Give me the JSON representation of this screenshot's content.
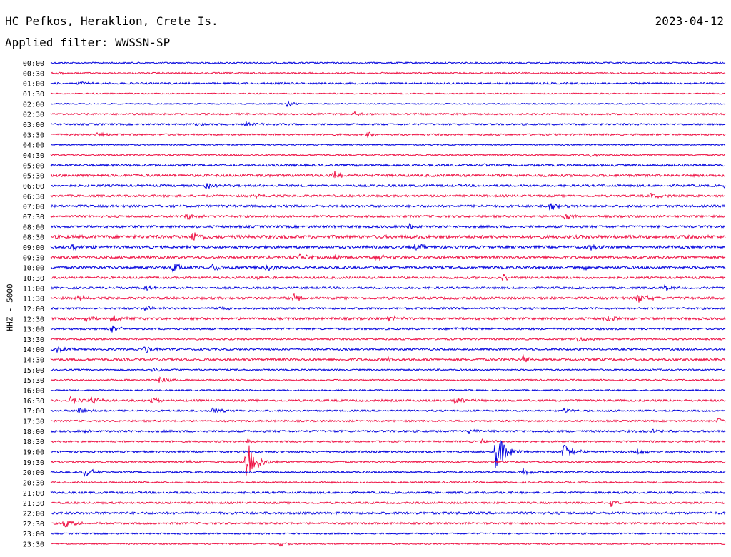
{
  "header": {
    "station": "HC Pefkos, Heraklion, Crete Is.",
    "date": "2023-04-12",
    "filter_label": "Applied filter:",
    "filter_name": "WWSSN-SP"
  },
  "channel_label": "HHZ - 5000",
  "colors": {
    "odd_trace": "#0000dd",
    "even_trace": "#ee1144"
  },
  "chart_data": {
    "type": "line",
    "title": "HC Pefkos, Heraklion, Crete Is.",
    "ylabel": "HHZ - 5000",
    "categories": [
      "00:00",
      "00:30",
      "01:00",
      "01:30",
      "02:00",
      "02:30",
      "03:00",
      "03:30",
      "04:00",
      "04:30",
      "05:00",
      "05:30",
      "06:00",
      "06:30",
      "07:00",
      "07:30",
      "08:00",
      "08:30",
      "09:00",
      "09:30",
      "10:00",
      "10:30",
      "11:00",
      "11:30",
      "12:00",
      "12:30",
      "13:00",
      "13:30",
      "14:00",
      "14:30",
      "15:00",
      "15:30",
      "16:00",
      "16:30",
      "17:00",
      "17:30",
      "18:00",
      "18:30",
      "19:00",
      "19:30",
      "20:00",
      "20:30",
      "21:00",
      "21:30",
      "22:00",
      "22:30",
      "23:00",
      "23:30"
    ],
    "noise": [
      1,
      1,
      1.2,
      0.8,
      0.8,
      1.2,
      1.2,
      1.2,
      0.8,
      1,
      1.5,
      1.8,
      1.5,
      1.5,
      1.6,
      1.5,
      1.6,
      2.2,
      1.8,
      1.8,
      1.8,
      1.5,
      1.4,
      1.6,
      1.3,
      1.6,
      1.3,
      1.2,
      1.3,
      1.6,
      1,
      1,
      1,
      1.4,
      1.2,
      1.2,
      1.4,
      1.2,
      1.3,
      1.1,
      1.2,
      1.1,
      1.4,
      1.3,
      1.6,
      1.3,
      1,
      0.9
    ],
    "events": [
      {
        "row": 1,
        "pos": 0.005,
        "amp": 3
      },
      {
        "row": 2,
        "pos": 0.04,
        "amp": 3
      },
      {
        "row": 4,
        "pos": 0.35,
        "amp": 4
      },
      {
        "row": 5,
        "pos": 0.45,
        "amp": 3
      },
      {
        "row": 6,
        "pos": 0.21,
        "amp": 3
      },
      {
        "row": 6,
        "pos": 0.29,
        "amp": 3
      },
      {
        "row": 7,
        "pos": 0.07,
        "amp": 3
      },
      {
        "row": 7,
        "pos": 0.47,
        "amp": 3
      },
      {
        "row": 9,
        "pos": 0.8,
        "amp": 3
      },
      {
        "row": 10,
        "pos": 0.64,
        "amp": 3
      },
      {
        "row": 11,
        "pos": 0.42,
        "amp": 8
      },
      {
        "row": 12,
        "pos": 0.23,
        "amp": 4
      },
      {
        "row": 12,
        "pos": 1.0,
        "amp": 5
      },
      {
        "row": 13,
        "pos": 0.3,
        "amp": 3
      },
      {
        "row": 13,
        "pos": 0.89,
        "amp": 4
      },
      {
        "row": 14,
        "pos": 0.74,
        "amp": 8
      },
      {
        "row": 15,
        "pos": 0.2,
        "amp": 5
      },
      {
        "row": 15,
        "pos": 0.76,
        "amp": 5
      },
      {
        "row": 16,
        "pos": 0.53,
        "amp": 5
      },
      {
        "row": 17,
        "pos": 0.21,
        "amp": 8
      },
      {
        "row": 17,
        "pos": 1.0,
        "amp": 5
      },
      {
        "row": 18,
        "pos": 0.03,
        "amp": 5
      },
      {
        "row": 18,
        "pos": 0.54,
        "amp": 4
      },
      {
        "row": 18,
        "pos": 0.8,
        "amp": 5
      },
      {
        "row": 19,
        "pos": 0.37,
        "amp": 5
      },
      {
        "row": 19,
        "pos": 0.42,
        "amp": 6
      },
      {
        "row": 19,
        "pos": 0.48,
        "amp": 6
      },
      {
        "row": 20,
        "pos": 0.18,
        "amp": 9
      },
      {
        "row": 20,
        "pos": 0.24,
        "amp": 5
      },
      {
        "row": 20,
        "pos": 0.32,
        "amp": 4
      },
      {
        "row": 20,
        "pos": 0.79,
        "amp": 4
      },
      {
        "row": 21,
        "pos": 0.3,
        "amp": 4
      },
      {
        "row": 21,
        "pos": 0.67,
        "amp": 6
      },
      {
        "row": 22,
        "pos": 0.14,
        "amp": 4
      },
      {
        "row": 22,
        "pos": 0.91,
        "amp": 4
      },
      {
        "row": 23,
        "pos": 0.04,
        "amp": 4
      },
      {
        "row": 23,
        "pos": 0.36,
        "amp": 6
      },
      {
        "row": 23,
        "pos": 0.87,
        "amp": 8
      },
      {
        "row": 24,
        "pos": 0.14,
        "amp": 4
      },
      {
        "row": 24,
        "pos": 0.24,
        "amp": 4
      },
      {
        "row": 25,
        "pos": 0.05,
        "amp": 5
      },
      {
        "row": 25,
        "pos": 0.09,
        "amp": 6
      },
      {
        "row": 25,
        "pos": 0.5,
        "amp": 5
      },
      {
        "row": 25,
        "pos": 0.82,
        "amp": 6
      },
      {
        "row": 26,
        "pos": 0.09,
        "amp": 6
      },
      {
        "row": 26,
        "pos": 0.6,
        "amp": 3
      },
      {
        "row": 27,
        "pos": 0.78,
        "amp": 5
      },
      {
        "row": 28,
        "pos": 0.01,
        "amp": 4
      },
      {
        "row": 28,
        "pos": 0.14,
        "amp": 7
      },
      {
        "row": 29,
        "pos": 0.5,
        "amp": 4
      },
      {
        "row": 29,
        "pos": 0.7,
        "amp": 5
      },
      {
        "row": 30,
        "pos": 0.15,
        "amp": 3
      },
      {
        "row": 31,
        "pos": 0.16,
        "amp": 6
      },
      {
        "row": 33,
        "pos": 0.03,
        "amp": 7
      },
      {
        "row": 33,
        "pos": 0.06,
        "amp": 6
      },
      {
        "row": 33,
        "pos": 0.15,
        "amp": 5
      },
      {
        "row": 33,
        "pos": 0.6,
        "amp": 7
      },
      {
        "row": 34,
        "pos": 0.04,
        "amp": 8
      },
      {
        "row": 34,
        "pos": 0.24,
        "amp": 6
      },
      {
        "row": 34,
        "pos": 0.76,
        "amp": 4
      },
      {
        "row": 35,
        "pos": 0.99,
        "amp": 6
      },
      {
        "row": 36,
        "pos": 0.05,
        "amp": 3
      },
      {
        "row": 36,
        "pos": 0.62,
        "amp": 4
      },
      {
        "row": 36,
        "pos": 0.89,
        "amp": 3
      },
      {
        "row": 37,
        "pos": 0.64,
        "amp": 4
      },
      {
        "row": 37,
        "pos": 0.29,
        "amp": 4
      },
      {
        "row": 38,
        "pos": 0.66,
        "amp": 30
      },
      {
        "row": 38,
        "pos": 0.76,
        "amp": 12
      },
      {
        "row": 38,
        "pos": 0.87,
        "amp": 5
      },
      {
        "row": 39,
        "pos": 0.29,
        "amp": 40
      },
      {
        "row": 39,
        "pos": 0.2,
        "amp": 3
      },
      {
        "row": 40,
        "pos": 0.05,
        "amp": 8
      },
      {
        "row": 40,
        "pos": 0.7,
        "amp": 5
      },
      {
        "row": 43,
        "pos": 0.83,
        "amp": 5
      },
      {
        "row": 45,
        "pos": 0.02,
        "amp": 8
      },
      {
        "row": 47,
        "pos": 0.34,
        "amp": 4
      }
    ]
  }
}
